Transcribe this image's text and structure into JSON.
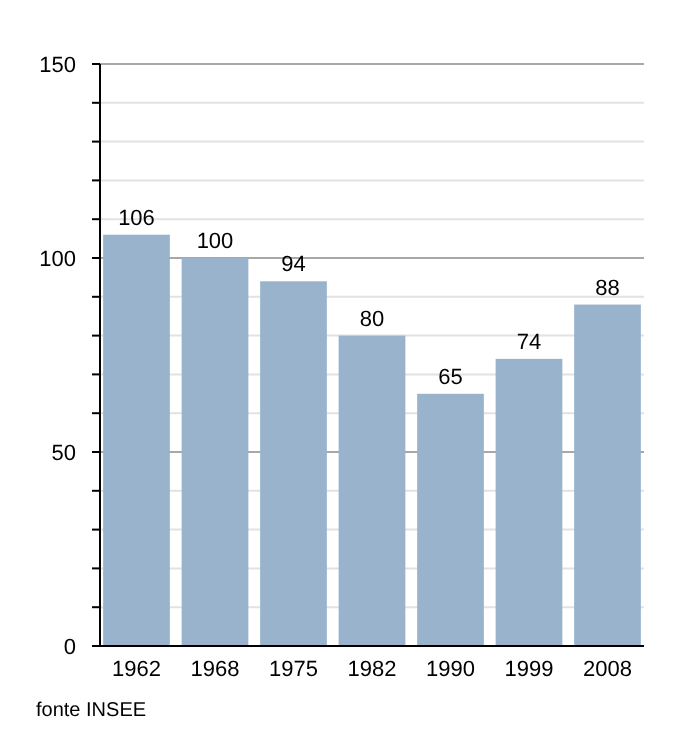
{
  "chart_data": {
    "type": "bar",
    "categories": [
      "1962",
      "1968",
      "1975",
      "1982",
      "1990",
      "1999",
      "2008"
    ],
    "values": [
      106,
      100,
      94,
      80,
      65,
      74,
      88
    ],
    "color": "#9ab3cd",
    "data_labels": true,
    "ylim": [
      0,
      150
    ],
    "yticks": [
      0,
      {
        "value": 10,
        "label": null
      },
      {
        "value": 20,
        "label": null
      },
      {
        "value": 30,
        "label": null
      },
      {
        "value": 40,
        "label": null
      },
      50,
      {
        "value": 60,
        "label": null
      },
      {
        "value": 70,
        "label": null
      },
      {
        "value": 80,
        "label": null
      },
      {
        "value": 90,
        "label": null
      },
      100,
      {
        "value": 110,
        "label": null
      },
      {
        "value": 120,
        "label": null
      },
      {
        "value": 130,
        "label": null
      },
      {
        "value": 140,
        "label": null
      },
      150
    ],
    "grid": true,
    "annotations": [
      "fonte INSEE"
    ]
  }
}
